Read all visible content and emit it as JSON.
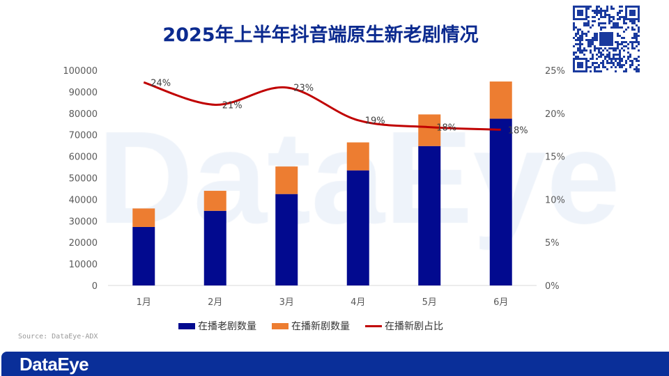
{
  "title": "2025年上半年抖音端原生新老剧情况",
  "watermark": "DataEye",
  "source": "Source: DataEye-ADX",
  "footer_logo": "DataEye",
  "chart_data": {
    "type": "bar",
    "title": "2025年上半年抖音端原生新老剧情况",
    "categories": [
      "1月",
      "2月",
      "3月",
      "4月",
      "5月",
      "6月"
    ],
    "series": [
      {
        "name": "在播老剧数量",
        "type": "bar",
        "stack": "total",
        "color": "#020a8f",
        "values": [
          27200,
          34700,
          42500,
          53500,
          64800,
          77500
        ]
      },
      {
        "name": "在播新剧数量",
        "type": "bar",
        "stack": "total",
        "color": "#ed7d31",
        "values": [
          8600,
          9300,
          12800,
          13000,
          14700,
          17300
        ]
      },
      {
        "name": "在播新剧占比",
        "type": "line",
        "axis": "right",
        "color": "#c00000",
        "values": [
          23.6,
          21.0,
          23.0,
          19.2,
          18.4,
          18.1
        ],
        "labels": [
          "24%",
          "21%",
          "23%",
          "19%",
          "18%",
          "18%"
        ]
      }
    ],
    "ylim": [
      0,
      100000
    ],
    "yticks": [
      "0",
      "10000",
      "20000",
      "30000",
      "40000",
      "50000",
      "60000",
      "70000",
      "80000",
      "90000",
      "100000"
    ],
    "y2lim": [
      0,
      25
    ],
    "y2ticks": [
      "0%",
      "5%",
      "10%",
      "15%",
      "20%",
      "25%"
    ],
    "legend": "bottom"
  }
}
